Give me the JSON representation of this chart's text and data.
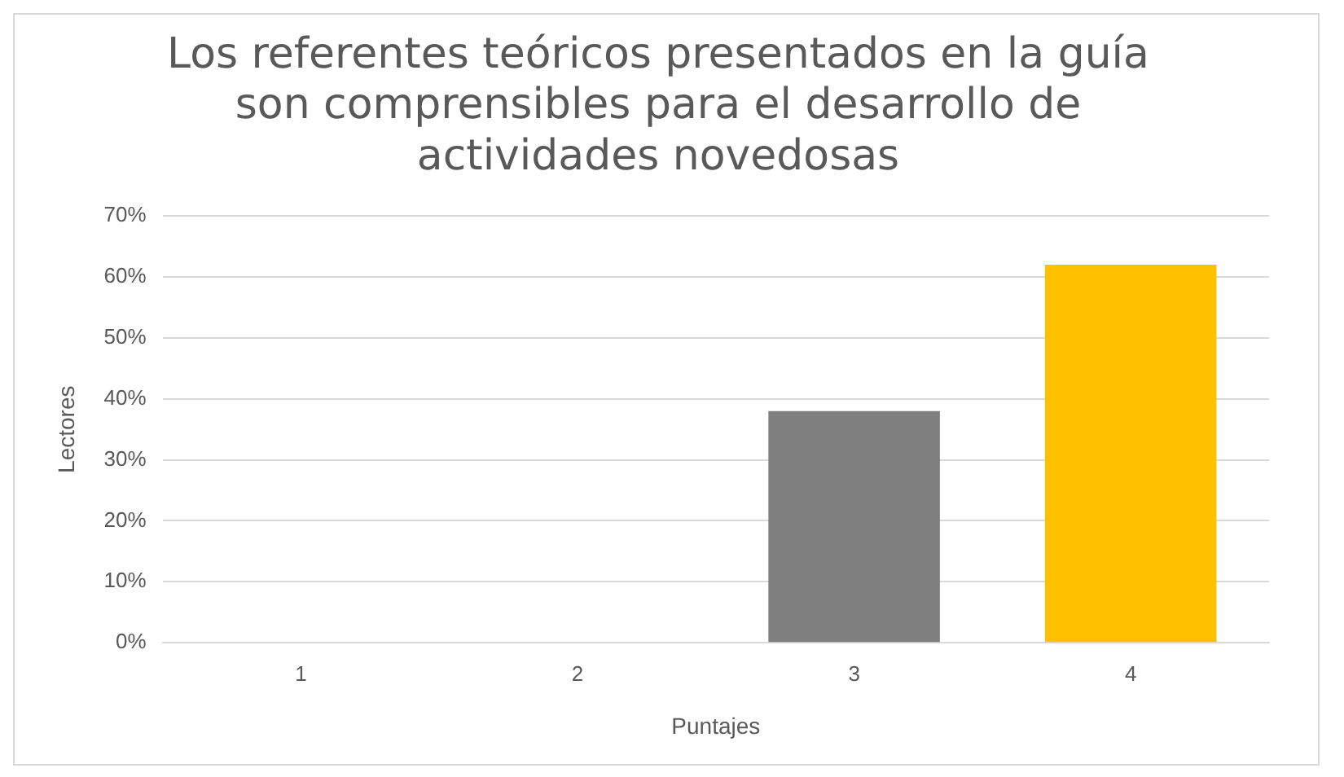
{
  "chart_data": {
    "type": "bar",
    "title": "Los referentes teóricos presentados en la guía son comprensibles para el desarrollo de actividades novedosas",
    "xlabel": "Puntajes",
    "ylabel": "Lectores",
    "categories": [
      "1",
      "2",
      "3",
      "4"
    ],
    "values": [
      0,
      0,
      38,
      62
    ],
    "colors": [
      "#4472c4",
      "#ed7d31",
      "#7f7f7f",
      "#ffc000"
    ],
    "ylim": [
      0,
      70
    ],
    "yticks": [
      {
        "value": 0,
        "label": "0%"
      },
      {
        "value": 10,
        "label": "10%"
      },
      {
        "value": 20,
        "label": "20%"
      },
      {
        "value": 30,
        "label": "30%"
      },
      {
        "value": 40,
        "label": "40%"
      },
      {
        "value": 50,
        "label": "50%"
      },
      {
        "value": 60,
        "label": "60%"
      },
      {
        "value": 70,
        "label": "70%"
      }
    ],
    "grid": "y",
    "legend": false
  }
}
